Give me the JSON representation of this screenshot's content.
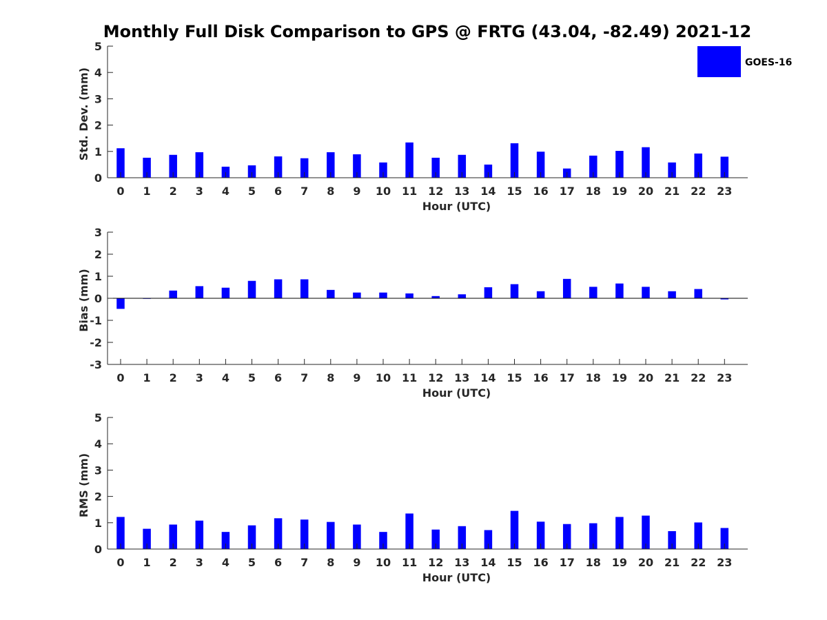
{
  "title": "Monthly Full Disk Comparison to GPS @ FRTG (43.04, -82.49) 2021-12",
  "colors": {
    "bar": "#0000ff",
    "axis": "#262626"
  },
  "legend": {
    "label": "GOES-16",
    "placement": "top-right"
  },
  "chart_data": [
    {
      "type": "bar",
      "xlabel": "Hour (UTC)",
      "ylabel": "Std. Dev. (mm)",
      "ylim": [
        0,
        5
      ],
      "yticks": [
        0,
        1,
        2,
        3,
        4,
        5
      ],
      "categories": [
        "0",
        "1",
        "2",
        "3",
        "4",
        "5",
        "6",
        "7",
        "8",
        "9",
        "10",
        "11",
        "12",
        "13",
        "14",
        "15",
        "16",
        "17",
        "18",
        "19",
        "20",
        "21",
        "22",
        "23"
      ],
      "series": [
        {
          "name": "GOES-16",
          "values": [
            1.12,
            0.76,
            0.87,
            0.97,
            0.42,
            0.47,
            0.81,
            0.74,
            0.97,
            0.89,
            0.58,
            1.34,
            0.76,
            0.87,
            0.5,
            1.31,
            0.99,
            0.35,
            0.84,
            1.02,
            1.16,
            0.58,
            0.92,
            0.8
          ]
        }
      ]
    },
    {
      "type": "bar",
      "xlabel": "Hour (UTC)",
      "ylabel": "Bias (mm)",
      "ylim": [
        -3,
        3
      ],
      "yticks": [
        -3,
        -2,
        -1,
        0,
        1,
        2,
        3
      ],
      "categories": [
        "0",
        "1",
        "2",
        "3",
        "4",
        "5",
        "6",
        "7",
        "8",
        "9",
        "10",
        "11",
        "12",
        "13",
        "14",
        "15",
        "16",
        "17",
        "18",
        "19",
        "20",
        "21",
        "22",
        "23"
      ],
      "series": [
        {
          "name": "GOES-16",
          "values": [
            -0.48,
            -0.01,
            0.35,
            0.55,
            0.48,
            0.79,
            0.86,
            0.86,
            0.38,
            0.26,
            0.26,
            0.22,
            0.1,
            0.18,
            0.5,
            0.64,
            0.32,
            0.88,
            0.52,
            0.67,
            0.52,
            0.32,
            0.42,
            -0.05
          ]
        }
      ]
    },
    {
      "type": "bar",
      "xlabel": "Hour (UTC)",
      "ylabel": "RMS (mm)",
      "ylim": [
        0,
        5
      ],
      "yticks": [
        0,
        1,
        2,
        3,
        4,
        5
      ],
      "categories": [
        "0",
        "1",
        "2",
        "3",
        "4",
        "5",
        "6",
        "7",
        "8",
        "9",
        "10",
        "11",
        "12",
        "13",
        "14",
        "15",
        "16",
        "17",
        "18",
        "19",
        "20",
        "21",
        "22",
        "23"
      ],
      "series": [
        {
          "name": "GOES-16",
          "values": [
            1.22,
            0.77,
            0.93,
            1.08,
            0.65,
            0.9,
            1.17,
            1.12,
            1.03,
            0.93,
            0.65,
            1.35,
            0.74,
            0.87,
            0.72,
            1.45,
            1.04,
            0.95,
            0.98,
            1.22,
            1.27,
            0.68,
            1.01,
            0.8
          ]
        }
      ]
    }
  ]
}
